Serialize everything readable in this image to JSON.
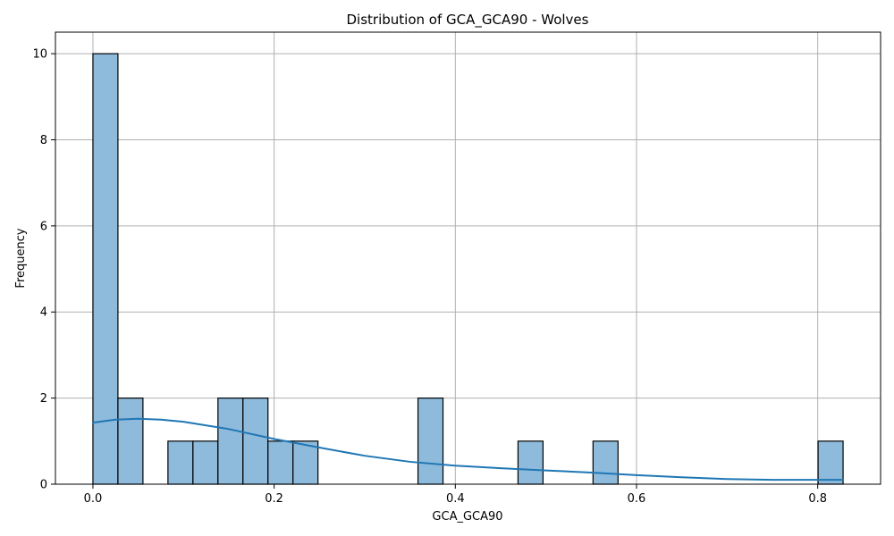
{
  "chart_data": {
    "type": "bar",
    "title": "Distribution of GCA_GCA90 - Wolves",
    "xlabel": "GCA_GCA90",
    "ylabel": "Frequency",
    "xlim": [
      -0.0414,
      0.8694
    ],
    "ylim": [
      0,
      10.5
    ],
    "grid": true,
    "bin_start": 0.0,
    "bin_width": 0.0276,
    "bins": [
      {
        "x0": 0.0,
        "x1": 0.0276,
        "count": 10
      },
      {
        "x0": 0.0276,
        "x1": 0.0552,
        "count": 2
      },
      {
        "x0": 0.0552,
        "x1": 0.0828,
        "count": 0
      },
      {
        "x0": 0.0828,
        "x1": 0.1104,
        "count": 1
      },
      {
        "x0": 0.1104,
        "x1": 0.138,
        "count": 1
      },
      {
        "x0": 0.138,
        "x1": 0.1656,
        "count": 2
      },
      {
        "x0": 0.1656,
        "x1": 0.1932,
        "count": 2
      },
      {
        "x0": 0.1932,
        "x1": 0.2208,
        "count": 1
      },
      {
        "x0": 0.2208,
        "x1": 0.2484,
        "count": 1
      },
      {
        "x0": 0.3588,
        "x1": 0.3864,
        "count": 2
      },
      {
        "x0": 0.4692,
        "x1": 0.4968,
        "count": 1
      },
      {
        "x0": 0.552,
        "x1": 0.5796,
        "count": 1
      },
      {
        "x0": 0.8004,
        "x1": 0.828,
        "count": 1
      }
    ],
    "kde": {
      "x": [
        0.0,
        0.025,
        0.05,
        0.075,
        0.1,
        0.15,
        0.2,
        0.25,
        0.3,
        0.35,
        0.4,
        0.45,
        0.5,
        0.55,
        0.6,
        0.65,
        0.7,
        0.75,
        0.8,
        0.828
      ],
      "y": [
        1.43,
        1.5,
        1.52,
        1.5,
        1.45,
        1.28,
        1.05,
        0.85,
        0.66,
        0.52,
        0.43,
        0.37,
        0.32,
        0.27,
        0.21,
        0.16,
        0.12,
        0.1,
        0.1,
        0.1
      ]
    },
    "xticks": [
      0.0,
      0.2,
      0.4,
      0.6,
      0.8
    ],
    "xtick_labels": [
      "0.0",
      "0.2",
      "0.4",
      "0.6",
      "0.8"
    ],
    "yticks": [
      0,
      2,
      4,
      6,
      8,
      10
    ],
    "ytick_labels": [
      "0",
      "2",
      "4",
      "6",
      "8",
      "10"
    ],
    "colors": {
      "bar_fill": "#8ebadb",
      "bar_edge": "#000000",
      "kde_line": "#1f77b4",
      "grid": "#b0b0b0"
    }
  }
}
